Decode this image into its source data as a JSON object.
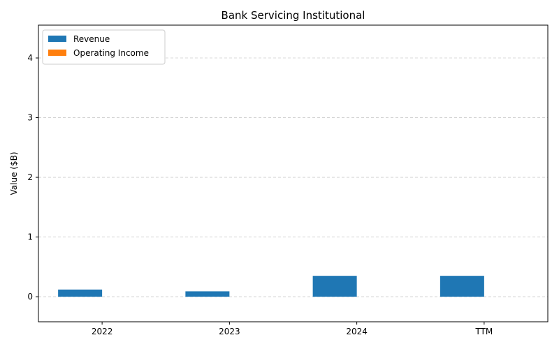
{
  "chart_data": {
    "type": "bar",
    "title": "Bank Servicing Institutional",
    "xlabel": "",
    "ylabel": "Value ($B)",
    "categories": [
      "2022",
      "2023",
      "2024",
      "TTM"
    ],
    "series": [
      {
        "name": "Revenue",
        "color": "#1f77b4",
        "values": [
          0.12,
          0.09,
          0.35,
          0.35
        ]
      },
      {
        "name": "Operating Income",
        "color": "#ff7f0e",
        "values": [
          0,
          0,
          0,
          0
        ]
      }
    ],
    "ylim": [
      -0.42,
      4.55
    ],
    "yticks": [
      0,
      1,
      2,
      3,
      4
    ],
    "grid": true,
    "legend_position": "top-left"
  }
}
